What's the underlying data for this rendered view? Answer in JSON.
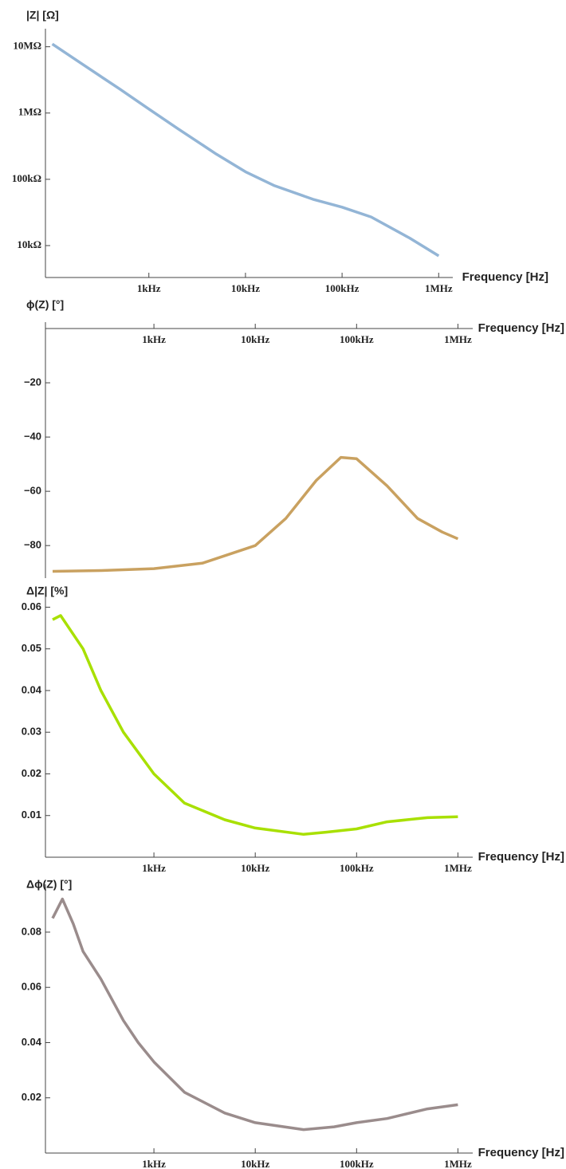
{
  "chart_data": [
    {
      "type": "line",
      "title": "|Z| [Ω]",
      "x_label": "Frequency [Hz]",
      "log_x": true,
      "log_y": true,
      "color": "#93b5d6",
      "x": [
        100,
        200,
        500,
        1000,
        2000,
        5000,
        10000,
        20000,
        50000,
        100000,
        200000,
        500000,
        1000000
      ],
      "values": [
        11000000,
        5600000,
        2300000,
        1150000,
        580000,
        240000,
        130000,
        80000,
        50000,
        38000,
        27000,
        13000,
        7000
      ],
      "xlim": [
        85,
        1400000
      ],
      "xticks": [
        {
          "value": 1000,
          "label": "1kHz"
        },
        {
          "value": 10000,
          "label": "10kHz"
        },
        {
          "value": 100000,
          "label": "100kHz"
        },
        {
          "value": 1000000,
          "label": "1MHz"
        }
      ],
      "ylim": [
        3300,
        15000000
      ],
      "yticks": [
        {
          "value": 10000,
          "label": "10kΩ"
        },
        {
          "value": 100000,
          "label": "100kΩ"
        },
        {
          "value": 1000000,
          "label": "1MΩ"
        },
        {
          "value": 10000000,
          "label": "10MΩ"
        }
      ]
    },
    {
      "type": "line",
      "title": "ϕ(Z) [°]",
      "x_label": "Frequency [Hz]",
      "log_x": true,
      "log_y": false,
      "color": "#c9a160",
      "x": [
        100,
        300,
        1000,
        3000,
        10000,
        20000,
        40000,
        70000,
        100000,
        200000,
        400000,
        700000,
        1000000
      ],
      "values": [
        -89.5,
        -89.2,
        -88.5,
        -86.5,
        -80,
        -70,
        -56,
        -47.5,
        -48,
        -58,
        -70,
        -75,
        -77.5
      ],
      "xlim": [
        85,
        1400000
      ],
      "xticks": [
        {
          "value": 1000,
          "label": "1kHz"
        },
        {
          "value": 10000,
          "label": "10kHz"
        },
        {
          "value": 100000,
          "label": "100kHz"
        },
        {
          "value": 1000000,
          "label": "1MHz"
        }
      ],
      "ylim": [
        -92,
        0
      ],
      "yticks": [
        {
          "value": -80,
          "label": "−80"
        },
        {
          "value": -60,
          "label": "−60"
        },
        {
          "value": -40,
          "label": "−40"
        },
        {
          "value": -20,
          "label": "−20"
        }
      ]
    },
    {
      "type": "line",
      "title": "Δ|Z| [%]",
      "x_label": "Frequency [Hz]",
      "log_x": true,
      "log_y": false,
      "color": "#a8e000",
      "x": [
        100,
        120,
        200,
        300,
        500,
        1000,
        2000,
        5000,
        10000,
        30000,
        50000,
        100000,
        200000,
        500000,
        1000000
      ],
      "values": [
        0.057,
        0.058,
        0.05,
        0.04,
        0.03,
        0.02,
        0.013,
        0.009,
        0.007,
        0.0055,
        0.006,
        0.0068,
        0.0085,
        0.0095,
        0.0097
      ],
      "xlim": [
        85,
        1400000
      ],
      "xticks": [
        {
          "value": 1000,
          "label": "1kHz"
        },
        {
          "value": 10000,
          "label": "10kHz"
        },
        {
          "value": 100000,
          "label": "100kHz"
        },
        {
          "value": 1000000,
          "label": "1MHz"
        }
      ],
      "ylim": [
        0,
        0.062
      ],
      "yticks": [
        0.01,
        0.02,
        0.03,
        0.04,
        0.05,
        0.06
      ]
    },
    {
      "type": "line",
      "title": "Δϕ(Z) [°]",
      "x_label": "Frequency [Hz]",
      "log_x": true,
      "log_y": false,
      "color": "#9a8c8c",
      "x": [
        100,
        125,
        160,
        200,
        300,
        500,
        700,
        1000,
        2000,
        5000,
        10000,
        30000,
        60000,
        100000,
        200000,
        500000,
        1000000
      ],
      "values": [
        0.085,
        0.092,
        0.083,
        0.073,
        0.063,
        0.048,
        0.04,
        0.033,
        0.022,
        0.0145,
        0.011,
        0.0085,
        0.0095,
        0.011,
        0.0125,
        0.016,
        0.0175
      ],
      "xlim": [
        85,
        1400000
      ],
      "xticks": [
        {
          "value": 1000,
          "label": "1kHz"
        },
        {
          "value": 10000,
          "label": "10kHz"
        },
        {
          "value": 100000,
          "label": "100kHz"
        },
        {
          "value": 1000000,
          "label": "1MHz"
        }
      ],
      "ylim": [
        0,
        0.095
      ],
      "yticks": [
        0.02,
        0.04,
        0.06,
        0.08
      ]
    }
  ]
}
